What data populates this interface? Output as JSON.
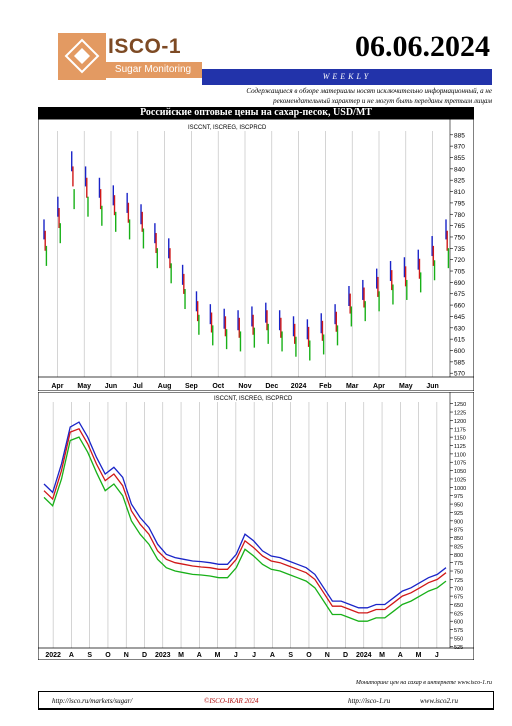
{
  "header": {
    "logo_title": "ISCO-1",
    "logo_subtitle": "Sugar Monitoring",
    "date": "06.06.2024",
    "weekly": "WEEKLY",
    "disclaimer": "Содержащиеся в обзоре материалы носят исключительно информационный, а не рекомендательный характер и не могут быть переданы третьим лицам"
  },
  "chart_title": "Российские оптовые цены на сахар-песок, USD/MT",
  "colors": {
    "cnt": "#1a24c8",
    "reg": "#d01818",
    "prcd": "#18b018",
    "weekly_bar": "#2233aa",
    "logo": "#e39a62"
  },
  "footer": {
    "note": "Мониторинг цен на сахар в интернете www.isco-1.ru",
    "link1": "http://isco.ru/markets/sugar/",
    "copyright": "©ISCO-IKAR 2024",
    "link2": "http://isco-1.ru",
    "link3": "www.isco2.ru"
  },
  "chart_data": [
    {
      "type": "line",
      "subtitle": "ISCCNT, ISCREG, ISCPRCD",
      "x_tick_labels": [
        "Apr",
        "May",
        "Jun",
        "Jul",
        "Aug",
        "Sep",
        "Oct",
        "Nov",
        "Dec",
        "2024",
        "Feb",
        "Mar",
        "Apr",
        "May",
        "Jun"
      ],
      "y_tick_labels": [
        "885",
        "870",
        "855",
        "840",
        "825",
        "810",
        "795",
        "780",
        "765",
        "750",
        "735",
        "720",
        "705",
        "690",
        "675",
        "660",
        "645",
        "630",
        "615",
        "600",
        "585",
        "570"
      ],
      "ylim": [
        565,
        890
      ],
      "series": [
        {
          "name": "ISCCNT",
          "values": [
            760,
            790,
            850,
            830,
            815,
            805,
            795,
            780,
            755,
            735,
            700,
            665,
            648,
            642,
            640,
            645,
            650,
            640,
            632,
            628,
            636,
            648,
            672,
            680,
            695,
            705,
            710,
            720,
            738,
            760
          ]
        },
        {
          "name": "ISCREG",
          "values": [
            745,
            775,
            830,
            815,
            800,
            792,
            782,
            770,
            742,
            722,
            688,
            652,
            637,
            632,
            630,
            634,
            640,
            630,
            622,
            618,
            626,
            638,
            662,
            670,
            684,
            693,
            698,
            708,
            725,
            745
          ]
        },
        {
          "name": "ISCPRCD",
          "values": [
            725,
            755,
            800,
            790,
            778,
            770,
            760,
            748,
            722,
            702,
            668,
            634,
            620,
            615,
            612,
            617,
            622,
            612,
            605,
            600,
            608,
            620,
            645,
            652,
            665,
            674,
            680,
            690,
            706,
            722
          ]
        }
      ]
    },
    {
      "type": "line",
      "subtitle": "ISCCNT, ISCREG, ISCPRCD",
      "x_tick_labels": [
        "2022",
        "A",
        "S",
        "O",
        "N",
        "D",
        "2023",
        "M",
        "A",
        "M",
        "J",
        "J",
        "A",
        "S",
        "O",
        "N",
        "D",
        "2024",
        "M",
        "A",
        "M",
        "J"
      ],
      "y_tick_labels": [
        "1250",
        "1225",
        "1200",
        "1175",
        "1150",
        "1125",
        "1100",
        "1075",
        "1050",
        "1025",
        "1000",
        "975",
        "950",
        "925",
        "900",
        "875",
        "850",
        "825",
        "800",
        "775",
        "750",
        "725",
        "700",
        "675",
        "650",
        "625",
        "600",
        "575",
        "550",
        "525"
      ],
      "ylim": [
        520,
        1255
      ],
      "series": [
        {
          "name": "ISCCNT",
          "values": [
            1010,
            985,
            1070,
            1180,
            1195,
            1150,
            1090,
            1040,
            1060,
            1030,
            950,
            910,
            880,
            830,
            800,
            790,
            785,
            780,
            778,
            775,
            770,
            770,
            800,
            860,
            840,
            810,
            795,
            790,
            780,
            770,
            760,
            740,
            700,
            660,
            660,
            650,
            640,
            640,
            650,
            650,
            670,
            690,
            700,
            715,
            730,
            740,
            760
          ]
        },
        {
          "name": "ISCREG",
          "values": [
            990,
            965,
            1050,
            1165,
            1175,
            1130,
            1070,
            1020,
            1040,
            1005,
            930,
            890,
            860,
            810,
            785,
            775,
            770,
            765,
            762,
            760,
            755,
            755,
            785,
            840,
            820,
            795,
            780,
            775,
            765,
            755,
            745,
            725,
            685,
            645,
            645,
            635,
            625,
            625,
            635,
            635,
            655,
            675,
            685,
            700,
            715,
            725,
            745
          ]
        },
        {
          "name": "ISCPRCD",
          "values": [
            970,
            945,
            1025,
            1140,
            1150,
            1105,
            1045,
            990,
            1010,
            975,
            900,
            860,
            830,
            785,
            760,
            750,
            745,
            740,
            738,
            735,
            730,
            730,
            760,
            815,
            795,
            770,
            755,
            750,
            740,
            730,
            720,
            700,
            660,
            620,
            620,
            610,
            600,
            600,
            610,
            610,
            630,
            650,
            660,
            675,
            690,
            700,
            720
          ]
        }
      ]
    }
  ]
}
